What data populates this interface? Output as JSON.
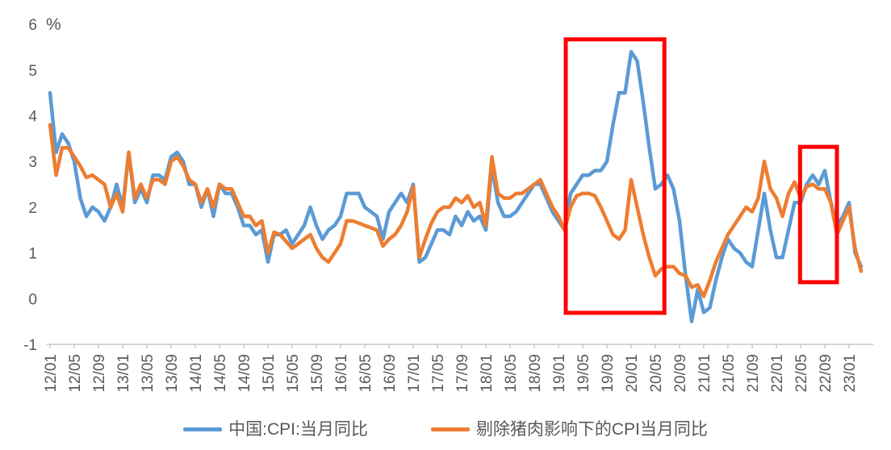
{
  "chart_data": {
    "type": "line",
    "title": "",
    "grid": false,
    "legend_position": "bottom",
    "y_axis": {
      "unit": "%",
      "min": -1,
      "max": 6,
      "ticks": [
        6,
        5,
        4,
        3,
        2,
        1,
        0,
        -1
      ]
    },
    "x_axis": {
      "months_per_tick": 4,
      "first_month": "2012-01",
      "last_month": "2023-03",
      "tick_labels": [
        "12/01",
        "12/05",
        "12/09",
        "13/01",
        "13/05",
        "13/09",
        "14/01",
        "14/05",
        "14/09",
        "15/01",
        "15/05",
        "15/09",
        "16/01",
        "16/05",
        "16/09",
        "17/01",
        "17/05",
        "17/09",
        "18/01",
        "18/05",
        "18/09",
        "19/01",
        "19/05",
        "19/09",
        "20/01",
        "20/05",
        "20/09",
        "21/01",
        "21/05",
        "21/09",
        "22/01",
        "22/05",
        "22/09",
        "23/01"
      ]
    },
    "series": [
      {
        "name": "中国:CPI:当月同比",
        "color": "#5B9BD5",
        "start": "2012-01",
        "values": [
          4.5,
          3.2,
          3.6,
          3.4,
          3.0,
          2.2,
          1.8,
          2.0,
          1.9,
          1.7,
          2.0,
          2.5,
          2.0,
          3.2,
          2.1,
          2.4,
          2.1,
          2.7,
          2.7,
          2.6,
          3.1,
          3.2,
          3.0,
          2.5,
          2.5,
          2.0,
          2.4,
          1.8,
          2.5,
          2.3,
          2.3,
          2.0,
          1.6,
          1.6,
          1.4,
          1.5,
          0.8,
          1.4,
          1.4,
          1.5,
          1.2,
          1.4,
          1.6,
          2.0,
          1.6,
          1.3,
          1.5,
          1.6,
          1.8,
          2.3,
          2.3,
          2.3,
          2.0,
          1.9,
          1.8,
          1.3,
          1.9,
          2.1,
          2.3,
          2.1,
          2.5,
          0.8,
          0.9,
          1.2,
          1.5,
          1.5,
          1.4,
          1.8,
          1.6,
          1.9,
          1.7,
          1.8,
          1.5,
          2.9,
          2.1,
          1.8,
          1.8,
          1.9,
          2.1,
          2.3,
          2.5,
          2.5,
          2.2,
          1.9,
          1.7,
          1.5,
          2.3,
          2.5,
          2.7,
          2.7,
          2.8,
          2.8,
          3.0,
          3.8,
          4.5,
          4.5,
          5.4,
          5.2,
          4.3,
          3.3,
          2.4,
          2.5,
          2.7,
          2.4,
          1.7,
          0.5,
          -0.5,
          0.2,
          -0.3,
          -0.2,
          0.4,
          0.9,
          1.3,
          1.1,
          1.0,
          0.8,
          0.7,
          1.5,
          2.3,
          1.5,
          0.9,
          0.9,
          1.5,
          2.1,
          2.1,
          2.5,
          2.7,
          2.5,
          2.8,
          2.1,
          1.6,
          1.8,
          2.1,
          1.0,
          0.7
        ]
      },
      {
        "name": "剔除猪肉影响下的CPI当月同比",
        "color": "#ED7D31",
        "start": "2012-01",
        "values": [
          3.8,
          2.7,
          3.3,
          3.3,
          3.1,
          2.9,
          2.65,
          2.7,
          2.6,
          2.5,
          2.0,
          2.3,
          1.9,
          3.2,
          2.2,
          2.5,
          2.2,
          2.6,
          2.6,
          2.5,
          3.0,
          3.1,
          2.9,
          2.6,
          2.5,
          2.1,
          2.4,
          2.0,
          2.5,
          2.4,
          2.4,
          2.1,
          1.8,
          1.8,
          1.6,
          1.7,
          1.0,
          1.45,
          1.4,
          1.25,
          1.1,
          1.2,
          1.3,
          1.4,
          1.1,
          0.9,
          0.8,
          1.0,
          1.2,
          1.7,
          1.7,
          1.65,
          1.6,
          1.55,
          1.5,
          1.15,
          1.3,
          1.4,
          1.6,
          1.9,
          2.45,
          0.9,
          1.3,
          1.65,
          1.9,
          2.0,
          2.0,
          2.2,
          2.1,
          2.25,
          2.0,
          2.1,
          1.6,
          3.1,
          2.3,
          2.2,
          2.2,
          2.3,
          2.3,
          2.4,
          2.5,
          2.6,
          2.3,
          2.0,
          1.8,
          1.5,
          2.0,
          2.25,
          2.3,
          2.3,
          2.25,
          2.0,
          1.7,
          1.4,
          1.3,
          1.5,
          2.6,
          2.0,
          1.4,
          0.9,
          0.5,
          0.65,
          0.7,
          0.7,
          0.55,
          0.5,
          0.25,
          0.3,
          0.05,
          0.4,
          0.8,
          1.1,
          1.4,
          1.6,
          1.8,
          2.0,
          1.9,
          2.2,
          3.0,
          2.4,
          2.2,
          1.8,
          2.3,
          2.55,
          2.2,
          2.45,
          2.5,
          2.4,
          2.4,
          2.1,
          1.4,
          1.7,
          2.0,
          1.1,
          0.6
        ]
      }
    ],
    "annotations": {
      "color": "#FF0000",
      "highlight_boxes": [
        {
          "start_month_index": 85.2,
          "end_month_index": 101.5,
          "top_value": 5.67,
          "bottom_value": -0.31
        },
        {
          "start_month_index": 123.9,
          "end_month_index": 130.0,
          "top_value": 3.32,
          "bottom_value": 0.36
        }
      ]
    }
  }
}
